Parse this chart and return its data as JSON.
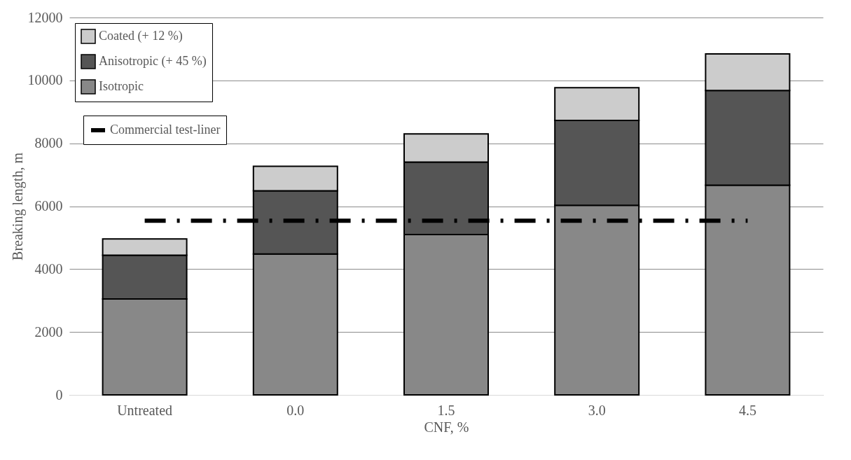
{
  "chart_data": {
    "type": "bar",
    "stacked": true,
    "xlabel": "CNF, %",
    "ylabel": "Breaking length, m",
    "categories": [
      "Untreated",
      "0.0",
      "1.5",
      "3.0",
      "4.5"
    ],
    "series": [
      {
        "name": "Isotropic",
        "color": "#888888",
        "values": [
          3050,
          4480,
          5100,
          6030,
          6670
        ]
      },
      {
        "name": "Anisotropic (+ 45 %)",
        "color": "#555555",
        "values": [
          1390,
          2010,
          2300,
          2700,
          3010
        ]
      },
      {
        "name": "Coated (+ 12 %)",
        "color": "#cccccc",
        "values": [
          520,
          780,
          900,
          1040,
          1160
        ]
      },
      {
        "name": "Commercial test-liner",
        "type": "line",
        "line_style": "dashed",
        "color": "#000000",
        "values": [
          5540,
          5540,
          5540,
          5540,
          5540
        ]
      }
    ],
    "ylim": [
      0,
      12000
    ],
    "yticks": [
      0,
      2000,
      4000,
      6000,
      8000,
      10000,
      12000
    ],
    "grid": "y",
    "legend": "top left"
  }
}
